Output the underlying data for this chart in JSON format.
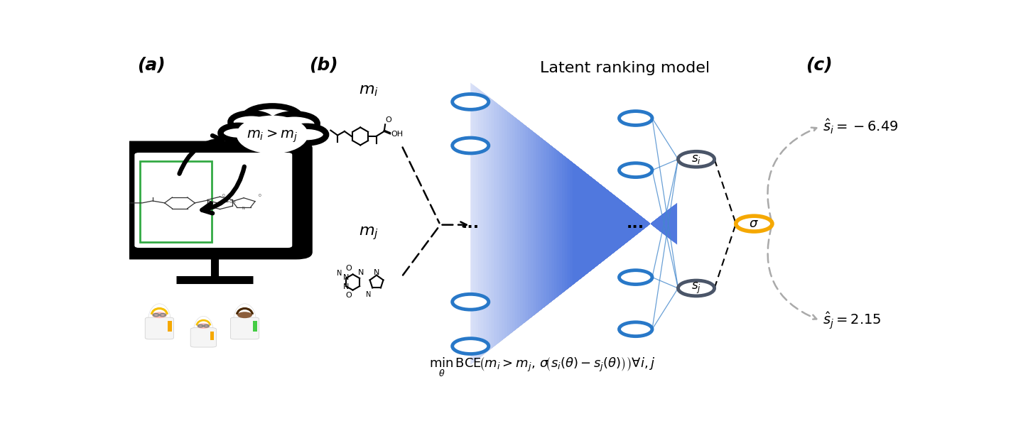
{
  "title": "Latent ranking model",
  "panel_a_label": "(a)",
  "panel_b_label": "(b)",
  "panel_c_label": "(c)",
  "cloud_text": "$m_i > m_j$",
  "mi_label": "$\\boldsymbol{m_i}$",
  "mj_label": "$\\boldsymbol{m_j}$",
  "score_i_text": "$\\hat{s}_i = -6.49$",
  "score_j_text": "$\\hat{s}_j = 2.15$",
  "sigma_text": "$\\sigma$",
  "s_i_text": "$s_i$",
  "s_j_text": "$s_j$",
  "formula": "$\\underset{\\theta}{\\min}\\,\\mathrm{BCE}\\!\\left(m_i > m_j,\\,\\sigma\\!\\left(s_i(\\theta) - s_j(\\theta)\\right)\\right) \\forall i, j$",
  "blue_node_color": "#2878c8",
  "dark_node_color": "#4a5568",
  "yellow_node_color": "#f5a800",
  "net_line_color": "#4488cc",
  "dash_color": "#aaaaaa",
  "black": "#000000",
  "white": "#ffffff",
  "bg": "#ffffff",
  "title_fontsize": 16,
  "panel_fontsize": 18,
  "mi_mj_fontsize": 16,
  "score_fontsize": 14,
  "formula_fontsize": 13
}
